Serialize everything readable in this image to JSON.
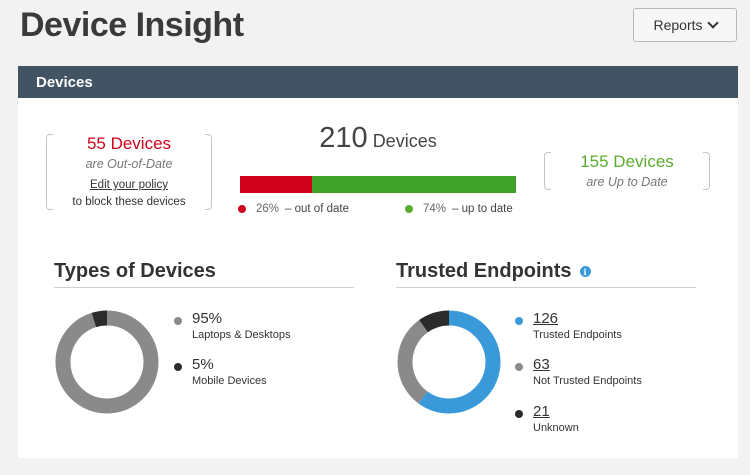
{
  "page": {
    "title": "Device Insight",
    "reports_label": "Reports"
  },
  "colors": {
    "header": "#425463",
    "red": "#d0021b",
    "green": "#3fa128",
    "blue": "#3a9ad9",
    "grey": "#8a8a8a",
    "dark": "#2b2b2b"
  },
  "devices": {
    "header": "Devices",
    "total_count": "210",
    "total_label": "Devices",
    "out_of_date": {
      "count_text": "55 Devices",
      "status": "are Out-of-Date",
      "policy_link": "Edit your policy",
      "policy_note": "to block these devices",
      "percent": "26%",
      "legend_label": "– out of date",
      "fraction": 0.26
    },
    "up_to_date": {
      "count_text": "155 Devices",
      "status": "are Up to Date",
      "percent": "74%",
      "legend_label": "– up to date",
      "fraction": 0.74
    }
  },
  "types": {
    "title": "Types of Devices",
    "items": [
      {
        "value": "95%",
        "label": "Laptops & Desktops",
        "fraction": 0.95,
        "color": "#8a8a8a"
      },
      {
        "value": "5%",
        "label": "Mobile Devices",
        "fraction": 0.05,
        "color": "#2b2b2b"
      }
    ]
  },
  "trusted": {
    "title": "Trusted Endpoints",
    "info_icon": "info-icon",
    "items": [
      {
        "value": "126",
        "label": "Trusted Endpoints",
        "count": 126,
        "color": "#3a9ad9"
      },
      {
        "value": "63",
        "label": "Not Trusted Endpoints",
        "count": 63,
        "color": "#8a8a8a"
      },
      {
        "value": "21",
        "label": "Unknown",
        "count": 21,
        "color": "#2b2b2b"
      }
    ]
  }
}
